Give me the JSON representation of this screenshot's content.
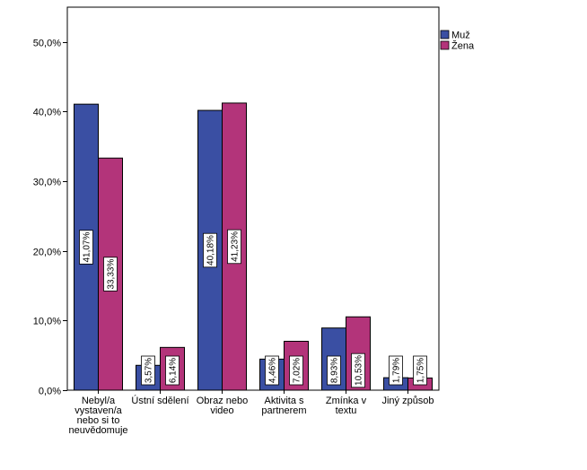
{
  "chart_data": {
    "type": "bar",
    "categories": [
      [
        "Nebyl/a",
        "vystaven/a",
        "nebo si to",
        "neuvědomuje"
      ],
      [
        "Ústní sdělení"
      ],
      [
        "Obraz nebo",
        "video"
      ],
      [
        "Aktivita s",
        "partnerem"
      ],
      [
        "Zmínka v",
        "textu"
      ],
      [
        "Jiný způsob"
      ]
    ],
    "series": [
      {
        "name": "Muž",
        "color": "#3a4fa3",
        "values": [
          41.07,
          3.57,
          40.18,
          4.46,
          8.93,
          1.79
        ],
        "labels": [
          "41,07%",
          "3,57%",
          "40,18%",
          "4,46%",
          "8,93%",
          "1,79%"
        ]
      },
      {
        "name": "Žena",
        "color": "#b3347a",
        "values": [
          33.33,
          6.14,
          41.23,
          7.02,
          10.53,
          1.75
        ],
        "labels": [
          "33,33%",
          "6,14%",
          "41,23%",
          "7,02%",
          "10,53%",
          "1,75%"
        ]
      }
    ],
    "yticks": [
      "0,0%",
      "10,0%",
      "20,0%",
      "30,0%",
      "40,0%",
      "50,0%"
    ],
    "ytick_values": [
      0,
      10,
      20,
      30,
      40,
      50
    ],
    "ylim": [
      0,
      55
    ],
    "title": "",
    "xlabel": "",
    "ylabel": "",
    "grid": false,
    "legend_position": "top-right"
  }
}
